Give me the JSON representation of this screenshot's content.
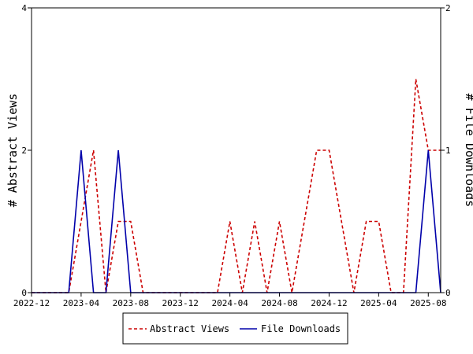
{
  "chart_data": {
    "type": "line",
    "ylabel": "# Abstract Views",
    "y2label": "# File Downloads",
    "ylim": [
      0,
      4
    ],
    "y2lim": [
      0,
      2
    ],
    "yticks": [
      "0",
      "2",
      "4"
    ],
    "y2ticks": [
      "0",
      "1",
      "2"
    ],
    "xlim": [
      "2022-12",
      "2025-09"
    ],
    "xticks": [
      "2022-12",
      "2023-04",
      "2023-08",
      "2023-12",
      "2024-04",
      "2024-08",
      "2024-12",
      "2025-04",
      "2025-08"
    ],
    "grid": false,
    "legend": "bottom-center",
    "x": [
      "2022-12",
      "2023-01",
      "2023-02",
      "2023-03",
      "2023-04",
      "2023-05",
      "2023-06",
      "2023-07",
      "2023-08",
      "2023-09",
      "2023-10",
      "2023-11",
      "2023-12",
      "2024-01",
      "2024-02",
      "2024-03",
      "2024-04",
      "2024-05",
      "2024-06",
      "2024-07",
      "2024-08",
      "2024-09",
      "2024-10",
      "2024-11",
      "2024-12",
      "2025-01",
      "2025-02",
      "2025-03",
      "2025-04",
      "2025-05",
      "2025-06",
      "2025-07",
      "2025-08",
      "2025-09"
    ],
    "series": [
      {
        "name": "Abstract Views",
        "color": "#cc0000",
        "dash": "dashed",
        "axis": "left",
        "values": [
          0,
          0,
          0,
          0,
          1,
          2,
          0,
          1,
          1,
          0,
          0,
          0,
          0,
          0,
          0,
          0,
          1,
          0,
          1,
          0,
          1,
          0,
          1,
          2,
          2,
          1,
          0,
          1,
          1,
          0,
          0,
          3,
          2,
          2
        ]
      },
      {
        "name": "File Downloads",
        "color": "#0000aa",
        "dash": "solid",
        "axis": "right",
        "values": [
          0,
          0,
          0,
          0,
          1,
          0,
          0,
          1,
          0,
          0,
          0,
          0,
          0,
          0,
          0,
          0,
          0,
          0,
          0,
          0,
          0,
          0,
          0,
          0,
          0,
          0,
          0,
          0,
          0,
          0,
          0,
          0,
          1,
          0
        ]
      }
    ]
  }
}
